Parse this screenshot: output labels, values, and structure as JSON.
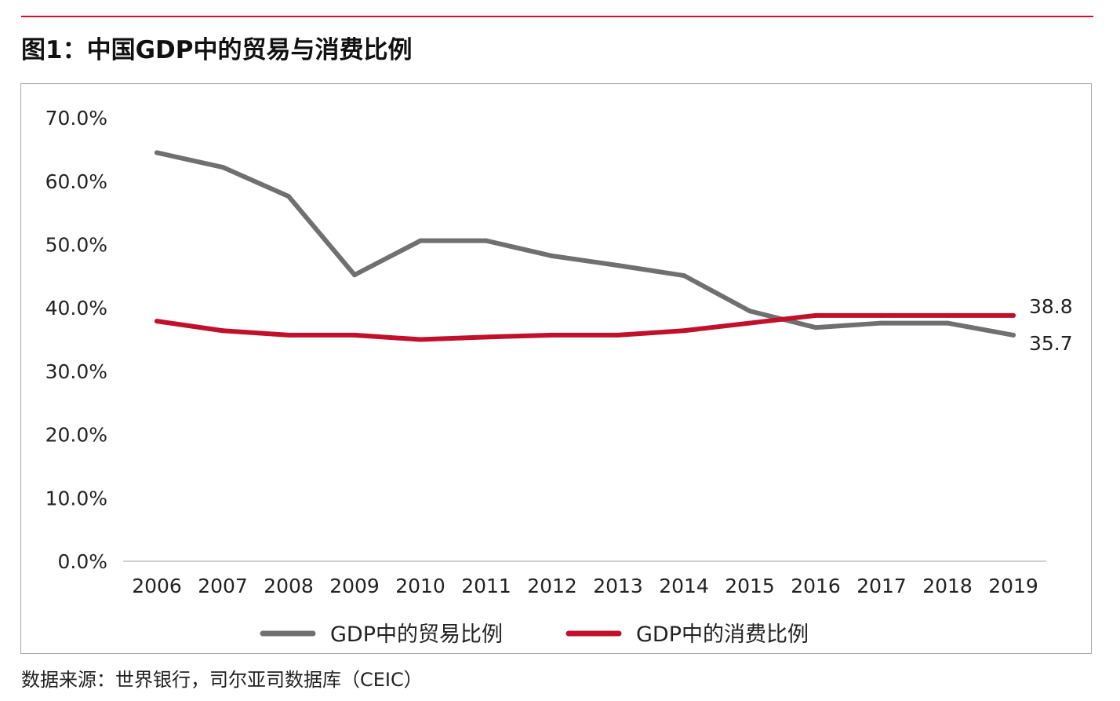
{
  "figure": {
    "title": "图1：中国GDP中的贸易与消费比例",
    "source": "数据来源：世界银行，司尔亚司数据库（CEIC）"
  },
  "chart_data": {
    "type": "line",
    "categories": [
      "2006",
      "2007",
      "2008",
      "2009",
      "2010",
      "2011",
      "2012",
      "2013",
      "2014",
      "2015",
      "2016",
      "2017",
      "2018",
      "2019"
    ],
    "y_tick_labels": [
      "70.0%",
      "60.0%",
      "50.0%",
      "40.0%",
      "30.0%",
      "20.0%",
      "10.0%",
      "0.0%"
    ],
    "ylim": [
      0,
      70
    ],
    "grid": false,
    "legend_position": "bottom",
    "series": [
      {
        "name": "GDP中的贸易比例",
        "color": "#707070",
        "values": [
          64.5,
          62.2,
          57.6,
          45.2,
          50.6,
          50.6,
          48.2,
          46.7,
          45.1,
          39.5,
          36.9,
          37.6,
          37.6,
          35.7
        ],
        "end_label": "35.7"
      },
      {
        "name": "GDP中的消费比例",
        "color": "#c0102b",
        "values": [
          37.9,
          36.4,
          35.7,
          35.7,
          35.0,
          35.4,
          35.7,
          35.7,
          36.4,
          37.6,
          38.8,
          38.8,
          38.8,
          38.8
        ],
        "end_label": "38.8"
      }
    ]
  }
}
